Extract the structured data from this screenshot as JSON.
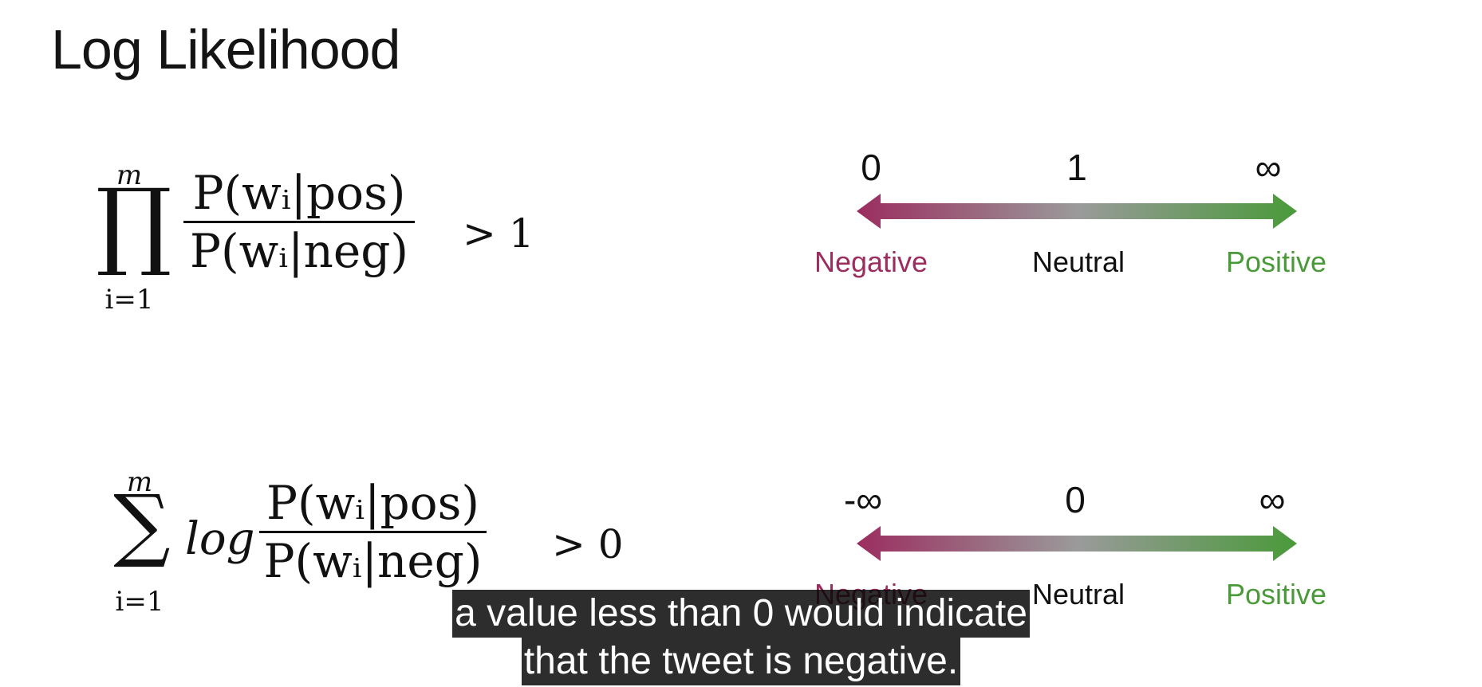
{
  "slide": {
    "title": "Log Likelihood"
  },
  "formula1": {
    "operator": "∏",
    "upper": "m",
    "lower": "i=1",
    "numerator": "P(wᵢ|pos)",
    "denominator": "P(wᵢ|neg)",
    "relation": "> 1"
  },
  "formula2": {
    "operator": "∑",
    "upper": "m",
    "lower": "i=1",
    "log": "log",
    "numerator": "P(wᵢ|pos)",
    "denominator": "P(wᵢ|neg)",
    "relation": "> 0"
  },
  "scale1": {
    "ticks": [
      "0",
      "1",
      "∞"
    ],
    "categories": [
      "Negative",
      "Neutral",
      "Positive"
    ]
  },
  "scale2": {
    "ticks": [
      "-∞",
      "0",
      "∞"
    ],
    "categories": [
      "Negative",
      "Neutral",
      "Positive"
    ]
  },
  "colors": {
    "negative": "#9b2d5f",
    "neutral_text": "#111111",
    "positive": "#4a9a3a",
    "arrow_mid": "#9a9a9a",
    "caption_bg": "#141414"
  },
  "captions": {
    "line1": "a value less than 0 would indicate",
    "line2": "that the tweet is negative."
  }
}
